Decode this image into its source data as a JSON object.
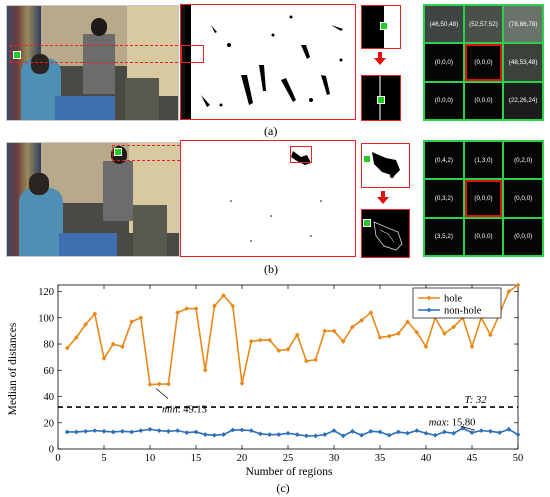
{
  "panel_a": {
    "caption": "(a)",
    "grid_cells": [
      "(46,50,48)",
      "(52,57,52)",
      "(78,86,78)",
      "(0,0,0)",
      "(0,0,0)",
      "(48,53,48)",
      "(0,0,0)",
      "(0,0,0)",
      "(22,26,24)"
    ],
    "cell_colors": [
      "#3f4540",
      "#494f49",
      "#697369",
      "#050505",
      "#050505",
      "#3c413c",
      "#050505",
      "#050505",
      "#1a1d1b"
    ]
  },
  "panel_b": {
    "caption": "(b)",
    "grid_cells": [
      "(0,4,2)",
      "(1,3,0)",
      "(0,2,0)",
      "(0,3,2)",
      "(0,0,0)",
      "(0,0,0)",
      "(3,5,2)",
      "(0,0,0)",
      "(0,0,0)"
    ],
    "cell_colors": [
      "#050505",
      "#050505",
      "#050505",
      "#050505",
      "#050505",
      "#050505",
      "#050505",
      "#050505",
      "#050505"
    ]
  },
  "panel_c": {
    "caption": "(c)"
  },
  "chart_data": {
    "type": "line",
    "xlabel": "Number of regions",
    "ylabel": "Median of distances",
    "xlim": [
      0,
      50
    ],
    "ylim": [
      0,
      125
    ],
    "xticks": [
      0,
      5,
      10,
      15,
      20,
      25,
      30,
      35,
      40,
      45,
      50
    ],
    "yticks": [
      0,
      20,
      40,
      60,
      80,
      100,
      120
    ],
    "legend_position": "top-right",
    "x": [
      1,
      2,
      3,
      4,
      5,
      6,
      7,
      8,
      9,
      10,
      11,
      12,
      13,
      14,
      15,
      16,
      17,
      18,
      19,
      20,
      21,
      22,
      23,
      24,
      25,
      26,
      27,
      28,
      29,
      30,
      31,
      32,
      33,
      34,
      35,
      36,
      37,
      38,
      39,
      40,
      41,
      42,
      43,
      44,
      45,
      46,
      47,
      48,
      49,
      50
    ],
    "series": [
      {
        "name": "hole",
        "color": "#e8891a",
        "values": [
          77,
          85,
          95,
          103,
          69,
          80,
          78,
          97,
          100,
          49.13,
          49.5,
          49.5,
          104,
          107,
          107,
          60,
          109,
          117,
          109,
          50,
          82,
          83,
          83,
          75,
          76,
          87,
          67,
          68,
          90,
          90,
          82,
          93,
          98,
          104,
          85,
          86,
          88,
          97,
          89,
          78,
          100,
          88,
          93,
          100,
          78,
          100,
          87,
          103,
          120,
          125
        ]
      },
      {
        "name": "non-hole",
        "color": "#2c6fb8",
        "values": [
          13,
          13,
          13.5,
          14,
          13.5,
          13,
          13.5,
          13,
          14,
          15,
          14,
          13.5,
          14,
          12.5,
          13,
          11,
          10.5,
          11,
          14.5,
          14.5,
          14,
          11.5,
          11,
          11,
          12,
          11,
          10,
          10,
          11,
          14,
          10,
          13.5,
          10.5,
          13.5,
          13,
          10.5,
          13,
          12,
          14,
          12,
          10.5,
          13,
          12,
          15.8,
          12.5,
          14,
          13.5,
          12.5,
          15,
          11
        ]
      }
    ],
    "threshold": {
      "value": 32,
      "label": "T: 32"
    },
    "annotations": {
      "min": {
        "label_prefix": "min",
        "label_value": ": 49.13",
        "x": 10,
        "y": 49.13
      },
      "max": {
        "label_prefix": "max",
        "label_value": ": 15.80",
        "x": 44,
        "y": 15.8
      }
    }
  }
}
